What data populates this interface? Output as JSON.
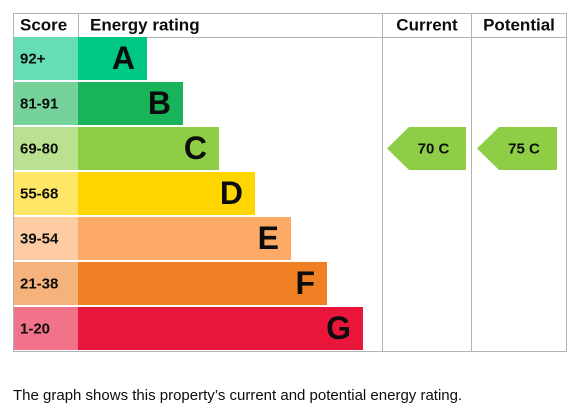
{
  "header": {
    "score": "Score",
    "rating": "Energy rating",
    "current": "Current",
    "potential": "Potential"
  },
  "bands": [
    {
      "score": "92+",
      "letter": "A",
      "color": "#00c781"
    },
    {
      "score": "81-91",
      "letter": "B",
      "color": "#19b459"
    },
    {
      "score": "69-80",
      "letter": "C",
      "color": "#8dce46"
    },
    {
      "score": "55-68",
      "letter": "D",
      "color": "#ffd500"
    },
    {
      "score": "39-54",
      "letter": "E",
      "color": "#fcaa65"
    },
    {
      "score": "21-38",
      "letter": "F",
      "color": "#ef8023"
    },
    {
      "score": "1-20",
      "letter": "G",
      "color": "#e9153b"
    }
  ],
  "current": {
    "score": 70,
    "letter": "C"
  },
  "potential": {
    "score": 75,
    "letter": "C"
  },
  "caption": "The graph shows this property’s current and potential energy rating."
}
